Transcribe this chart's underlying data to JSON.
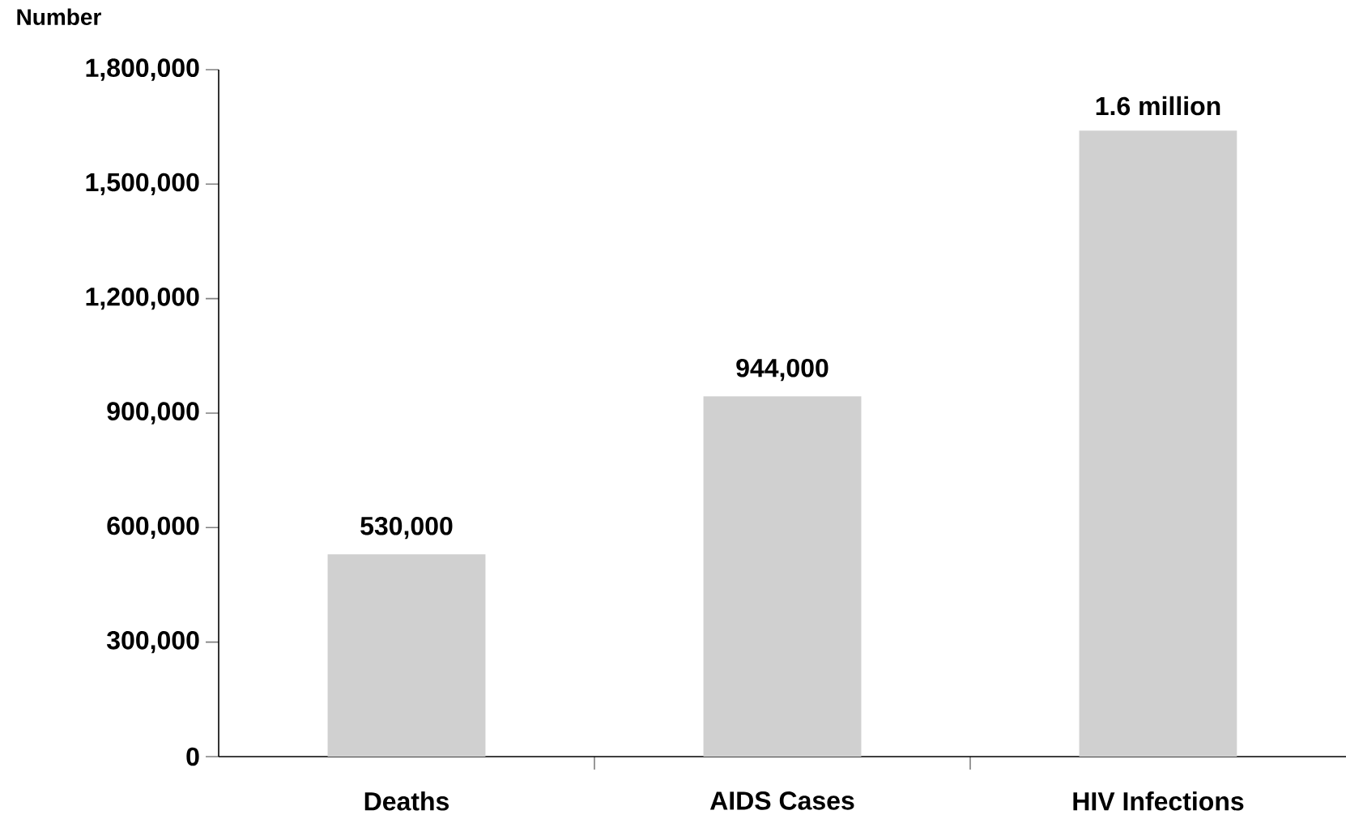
{
  "chart_data": {
    "type": "bar",
    "ylabel": "Number",
    "categories": [
      "Deaths",
      "AIDS Cases",
      "HIV Infections"
    ],
    "values": [
      530000,
      944000,
      1640000
    ],
    "value_labels": [
      "530,000",
      "944,000",
      "1.6 million"
    ],
    "color": "#d0d0d0",
    "ylim": [
      0,
      1800000
    ],
    "yticks": [
      0,
      {
        "value": 300000,
        "label": "300,000"
      },
      {
        "value": 600000,
        "label": "600,000"
      },
      {
        "value": 900000,
        "label": "900,000"
      },
      {
        "value": 1200000,
        "label": "1,200,000"
      },
      {
        "value": 1500000,
        "label": "1,500,000"
      },
      {
        "value": 1800000,
        "label": "1,800,000"
      }
    ],
    "relative": false
  }
}
